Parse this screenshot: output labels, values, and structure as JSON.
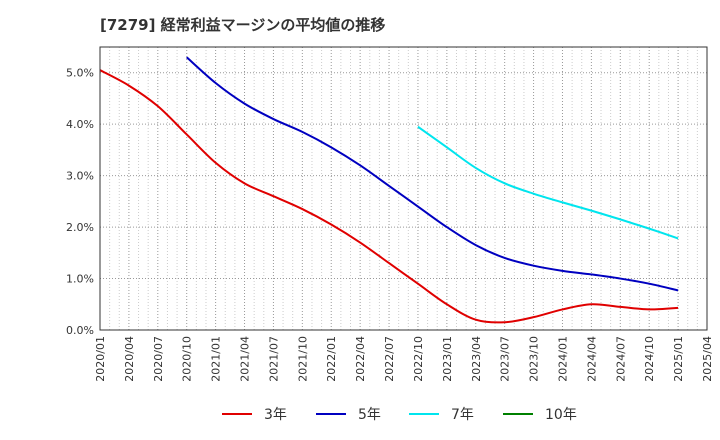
{
  "chart_data": {
    "type": "line",
    "title": "[7279]  経常利益マージンの平均値の推移",
    "xlabel": "",
    "ylabel": "",
    "categories": [
      "2020/01",
      "2020/04",
      "2020/07",
      "2020/10",
      "2021/01",
      "2021/04",
      "2021/07",
      "2021/10",
      "2022/01",
      "2022/04",
      "2022/07",
      "2022/10",
      "2023/01",
      "2023/04",
      "2023/07",
      "2023/10",
      "2024/01",
      "2024/04",
      "2024/07",
      "2024/10",
      "2025/01",
      "2025/04"
    ],
    "y_ticks": [
      "0.0%",
      "1.0%",
      "2.0%",
      "3.0%",
      "4.0%",
      "5.0%"
    ],
    "ylim": [
      0,
      5.5
    ],
    "grid": true,
    "legend_position": "bottom",
    "series": [
      {
        "name": "3年",
        "color": "#e00000",
        "values": [
          5.05,
          4.75,
          4.35,
          3.8,
          3.25,
          2.85,
          2.6,
          2.35,
          2.05,
          1.7,
          1.3,
          0.9,
          0.5,
          0.2,
          0.15,
          0.25,
          0.4,
          0.5,
          0.45,
          0.4,
          0.43,
          null
        ]
      },
      {
        "name": "5年",
        "color": "#0000c0",
        "values": [
          null,
          null,
          null,
          5.3,
          4.8,
          4.4,
          4.1,
          3.85,
          3.55,
          3.2,
          2.8,
          2.4,
          2.0,
          1.65,
          1.4,
          1.25,
          1.15,
          1.08,
          1.0,
          0.9,
          0.77,
          null
        ]
      },
      {
        "name": "7年",
        "color": "#00e5ee",
        "values": [
          null,
          null,
          null,
          null,
          null,
          null,
          null,
          null,
          null,
          null,
          null,
          3.95,
          3.55,
          3.15,
          2.85,
          2.65,
          2.48,
          2.32,
          2.15,
          1.97,
          1.78,
          null
        ]
      },
      {
        "name": "10年",
        "color": "#008000",
        "values": [
          null,
          null,
          null,
          null,
          null,
          null,
          null,
          null,
          null,
          null,
          null,
          null,
          null,
          null,
          null,
          null,
          null,
          null,
          null,
          null,
          null,
          null
        ]
      }
    ]
  }
}
